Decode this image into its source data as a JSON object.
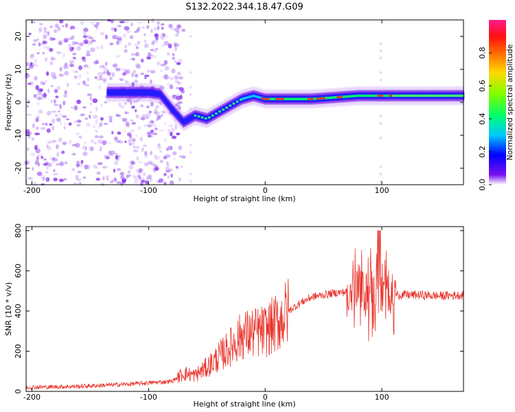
{
  "title": "S132.2022.344.18.47.G09",
  "chart_data": [
    {
      "type": "heatmap",
      "xlabel": "Height of straight line (km)",
      "ylabel": "Frequency (Hz)",
      "xlim": [
        -205,
        170
      ],
      "ylim": [
        -25,
        25
      ],
      "x_ticks": [
        -200,
        -100,
        0,
        100
      ],
      "y_ticks": [
        20,
        10,
        0,
        -10,
        -20
      ],
      "colorbar": {
        "label": "Normalized spectral amplitude",
        "range": [
          0,
          1
        ],
        "ticks": [
          "0.0",
          "0.2",
          "0.4",
          "0.6",
          "0.8"
        ],
        "colormap": "hsv"
      },
      "ridge": {
        "x": [
          -135,
          -120,
          -100,
          -90,
          -80,
          -70,
          -60,
          -50,
          -40,
          -30,
          -20,
          -10,
          0,
          20,
          40,
          60,
          80,
          100,
          120,
          140,
          170
        ],
        "y": [
          3,
          3,
          3,
          2.5,
          -2,
          -6,
          -4,
          -5,
          -3,
          -1,
          1,
          2,
          1,
          1,
          1,
          1.5,
          2,
          2,
          2,
          2,
          2
        ]
      }
    },
    {
      "type": "line",
      "xlabel": "Height of straight line (km)",
      "ylabel": "SNR (10 * v/v)",
      "xlim": [
        -205,
        170
      ],
      "ylim": [
        0,
        820
      ],
      "x_ticks": [
        -200,
        -100,
        0,
        100
      ],
      "y_ticks": [
        0,
        200,
        400,
        600,
        800
      ],
      "series_color": "#e8322a",
      "envelope": {
        "x": [
          -205,
          -160,
          -120,
          -80,
          -70,
          -60,
          -50,
          -40,
          -30,
          -20,
          -10,
          0,
          10,
          20,
          30,
          40,
          60,
          80,
          95,
          100,
          105,
          110,
          130,
          150,
          170
        ],
        "y": [
          20,
          25,
          35,
          50,
          90,
          80,
          120,
          170,
          220,
          280,
          290,
          300,
          340,
          400,
          440,
          470,
          490,
          500,
          490,
          480,
          490,
          480,
          480,
          475,
          480
        ]
      }
    }
  ]
}
